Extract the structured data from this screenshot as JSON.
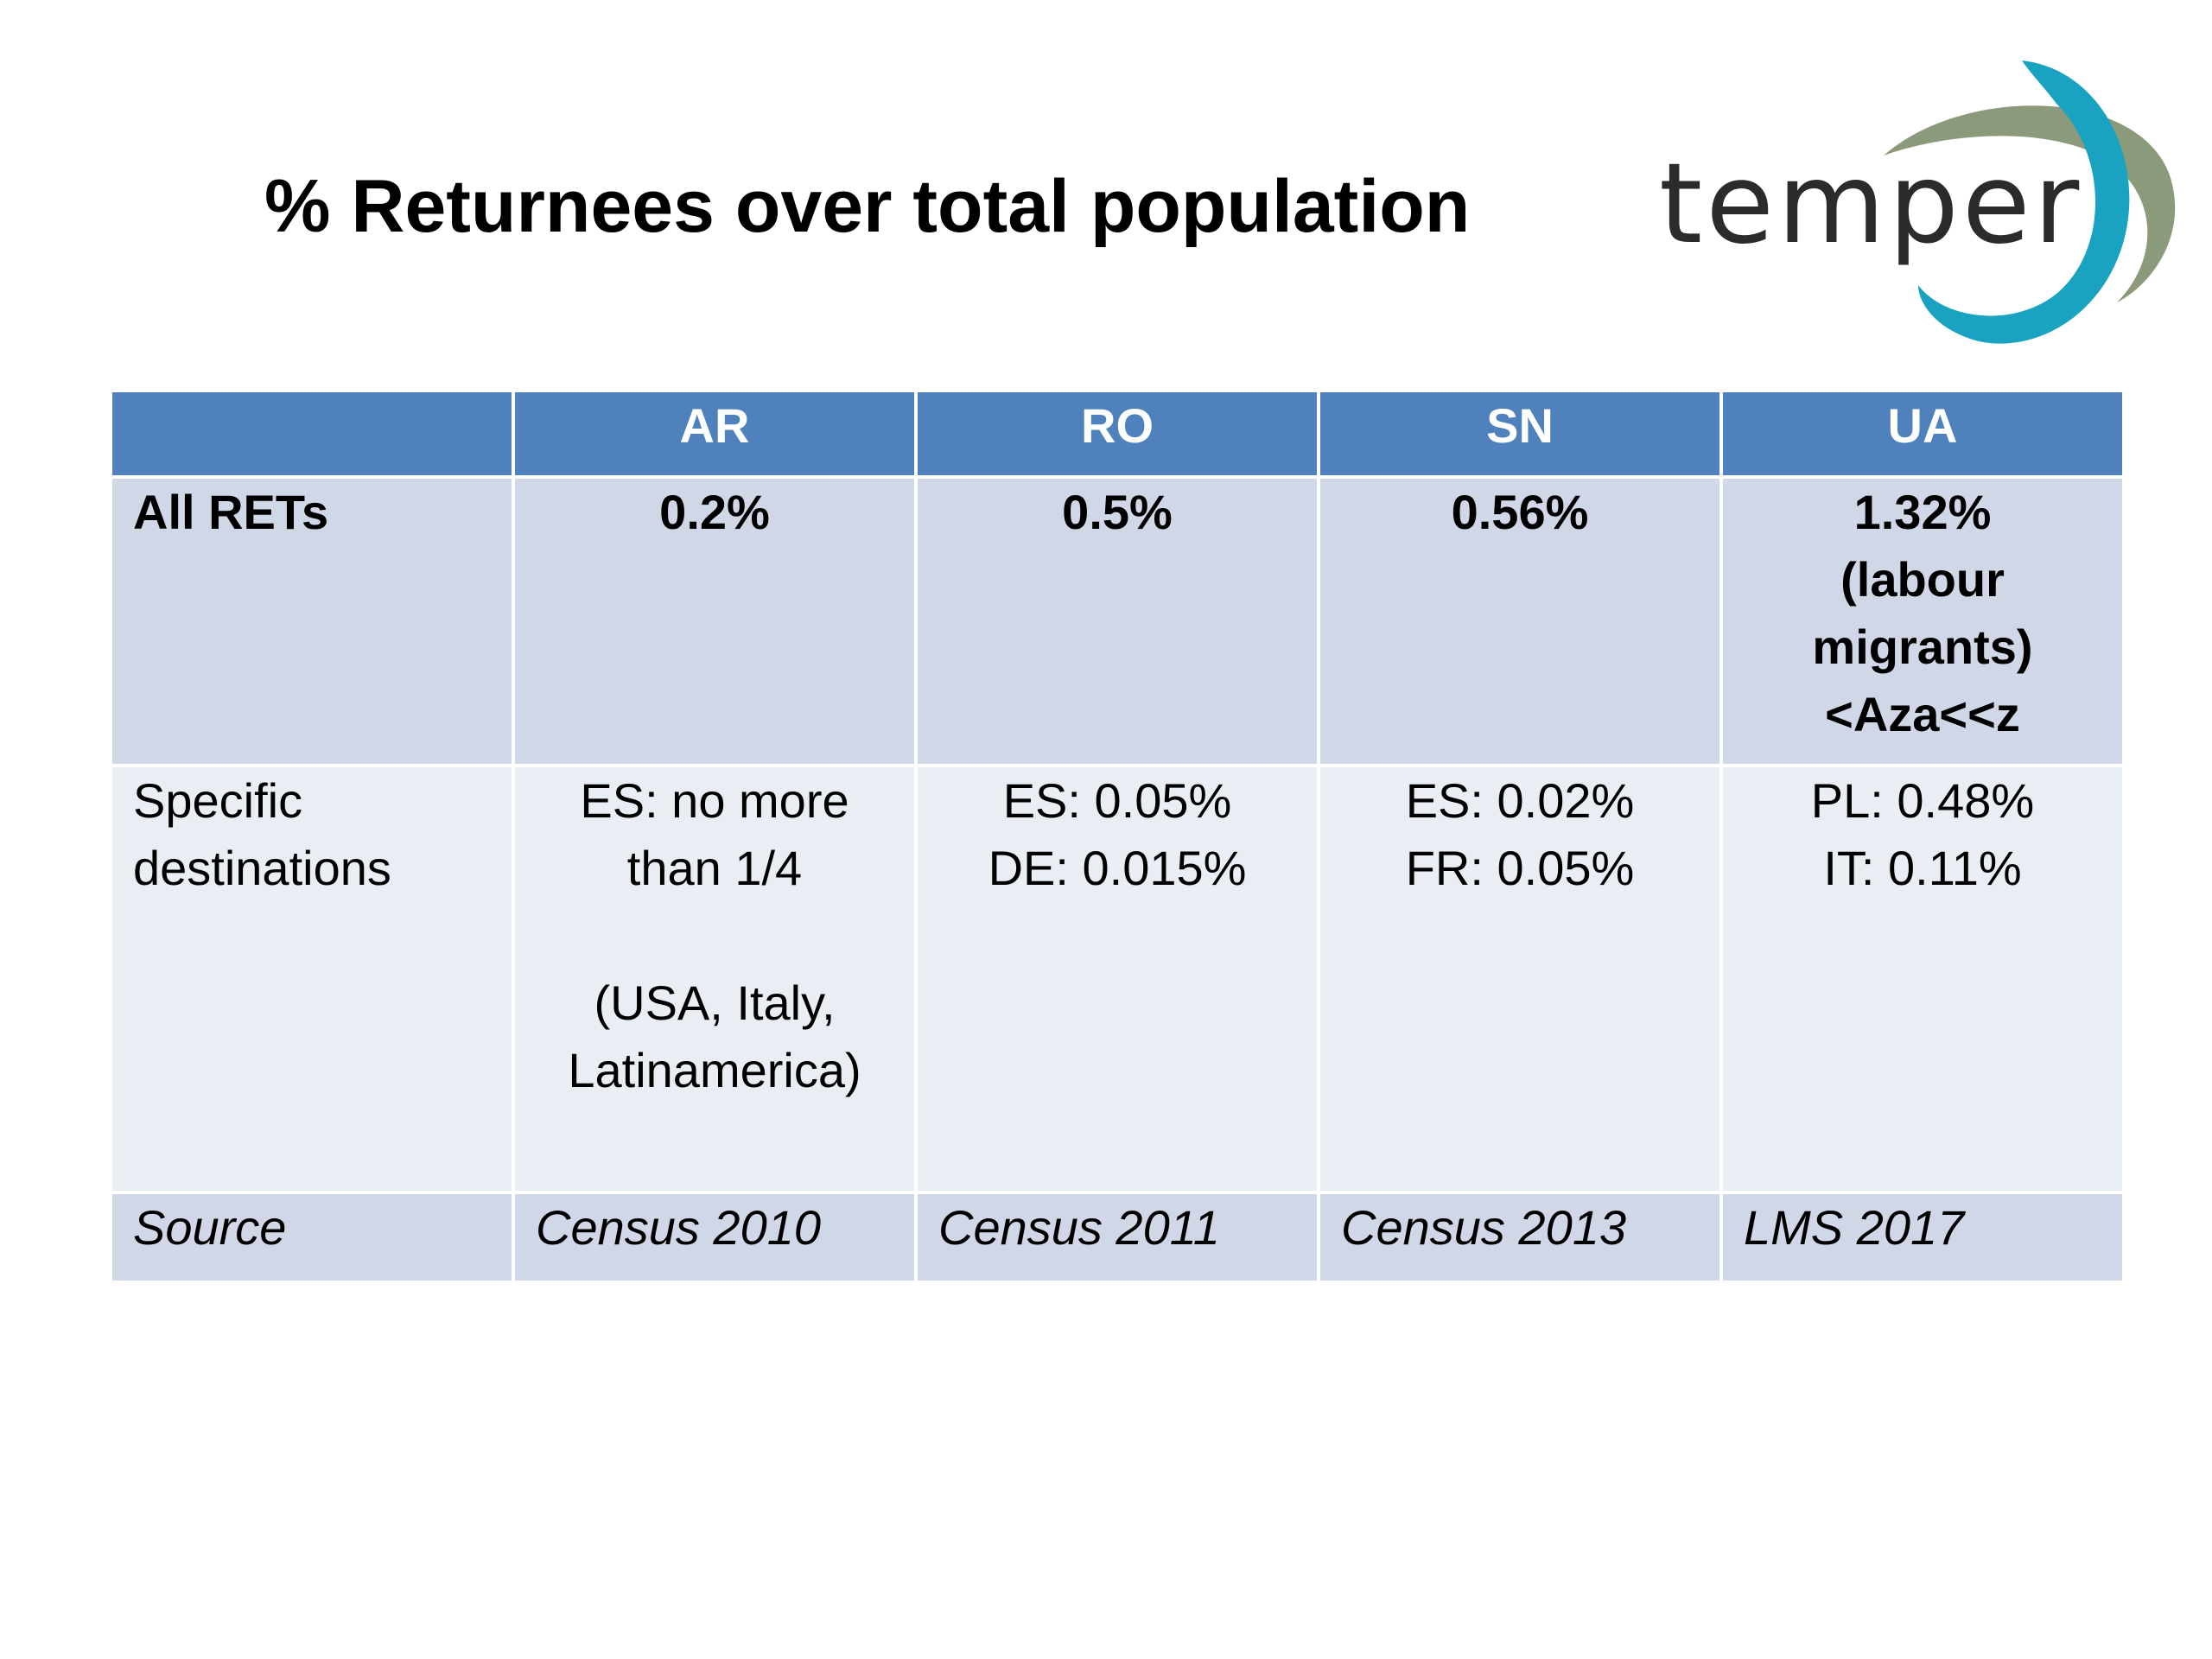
{
  "slide": {
    "title": "% Returnees over total population",
    "logo_text": "temper"
  },
  "table": {
    "columns": [
      "",
      "AR",
      "RO",
      "SN",
      "UA"
    ],
    "all_rets": {
      "label": "All RETs",
      "ar": "0.2%",
      "ro": "0.5%",
      "sn": "0.56%",
      "ua_lines": [
        "1.32%",
        "(labour",
        "migrants)",
        "<Aza<<z"
      ]
    },
    "specific": {
      "label_lines": [
        "Specific",
        "destinations"
      ],
      "ar_lines": [
        "ES: no more",
        "than  1/4"
      ],
      "ar_extra_lines": [
        "(USA, Italy,",
        "Latinamerica)"
      ],
      "ro_lines": [
        "ES: 0.05%",
        "DE: 0.015%"
      ],
      "sn_lines": [
        "ES: 0.02%",
        "FR: 0.05%"
      ],
      "ua_lines": [
        "PL: 0.48%",
        "IT: 0.11%"
      ]
    },
    "source": {
      "label": "Source",
      "ar": "Census 2010",
      "ro": "Census 2011",
      "sn": "Census 2013",
      "ua": "LMS 2017"
    }
  },
  "colors": {
    "header_bg": "#4f81bd",
    "row_dark": "#d0d8e8",
    "row_light": "#e9edf4",
    "logo_green": "#8a9a7a",
    "logo_teal": "#1aa3c1"
  }
}
